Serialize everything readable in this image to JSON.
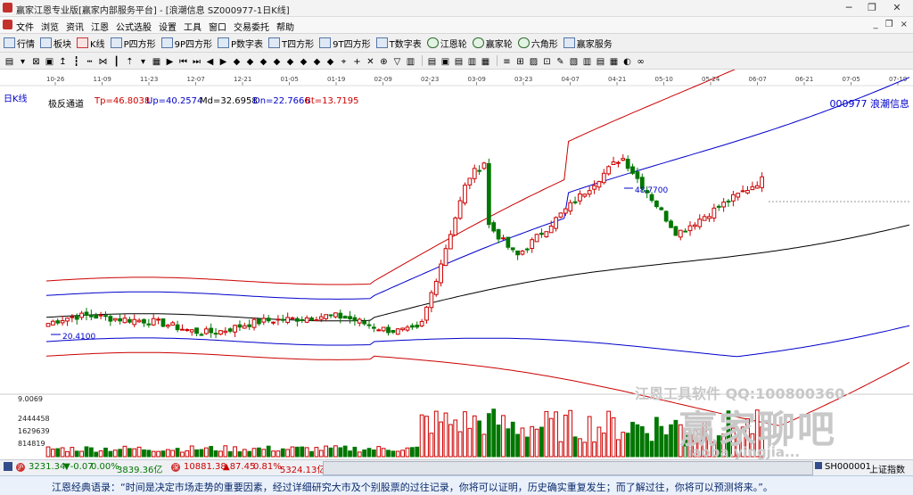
{
  "window": {
    "title": "赢家江恩专业版[赢家内部服务平台] - [浪潮信息 SZ000977-1日K线]",
    "minimize": "─",
    "maximize": "❐",
    "close": "✕"
  },
  "menu": {
    "items": [
      "文件",
      "浏览",
      "资讯",
      "江恩",
      "公式选股",
      "设置",
      "工具",
      "窗口",
      "交易委托",
      "帮助"
    ],
    "mdi": [
      "_",
      "❐",
      "×"
    ]
  },
  "toolbar": {
    "items": [
      {
        "label": "行情",
        "icon": "grid-icon"
      },
      {
        "label": "板块",
        "icon": "blocks-icon"
      },
      {
        "label": "K线",
        "icon": "candle-icon"
      },
      {
        "label": "P四方形",
        "icon": "p-square-icon"
      },
      {
        "label": "9P四方形",
        "icon": "9p-square-icon"
      },
      {
        "label": "P数字表",
        "icon": "p-table-icon"
      },
      {
        "label": "T四方形",
        "icon": "t-square-icon"
      },
      {
        "label": "9T四方形",
        "icon": "9t-square-icon"
      },
      {
        "label": "T数字表",
        "icon": "t-table-icon"
      },
      {
        "label": "江恩轮",
        "icon": "gann-wheel-icon"
      },
      {
        "label": "赢家轮",
        "icon": "winner-wheel-icon"
      },
      {
        "label": "六角形",
        "icon": "hexagon-icon"
      },
      {
        "label": "赢家服务",
        "icon": "service-icon"
      }
    ]
  },
  "chart": {
    "period_label": "日K线",
    "indicator": {
      "name": "极反通道",
      "tp": "Tp=46.8038",
      "up": "Up=40.2574",
      "md": "Md=32.6958",
      "dn": "Dn=22.7666",
      "bt": "Bt=13.7195"
    },
    "stock": "000977 浪潮信息",
    "high_label": "48.7700",
    "low_label": "20.4100",
    "dates": [
      "10-26",
      "11-09",
      "11-23",
      "12-07",
      "12-21",
      "01-05",
      "01-19",
      "02-09",
      "02-23",
      "03-09",
      "03-23",
      "04-07",
      "04-21",
      "05-10",
      "05-24",
      "06-07",
      "06-21",
      "07-05",
      "07-19"
    ],
    "volume_labels": [
      "9.0069",
      "2444458",
      "1629639",
      "814819"
    ]
  },
  "chart_data": {
    "type": "candlestick",
    "price_range": [
      10,
      60
    ],
    "volume_range": [
      0,
      3300000
    ],
    "max_price": 48.77,
    "min_price": 20.41
  },
  "status": {
    "sh_index": "3231.34",
    "sh_change": "▼-0.07",
    "sh_pct": "0.00%",
    "sh_amount": "3839.36亿",
    "sz_index": "10881.38",
    "sz_change": "▲87.45",
    "sz_pct": "0.81%",
    "sz_amount": "5324.13亿",
    "right_code": "SH000001",
    "right_name": "上证指数"
  },
  "quote": "江恩经典语录：“时间是决定市场走势的重要因素，经过详细研究大市及个别股票的过往记录，你将可以证明，历史确实重复发生；而了解过往，你将可以预测将来。”。",
  "watermark": {
    "line1": "江恩工具软件 QQ:100800360",
    "brand": "赢家聊吧",
    "domain": "liaoba.yingjia..."
  },
  "colors": {
    "up": "#cc0000",
    "down": "#007700",
    "upper_band": "#cc0000",
    "mid_band": "#0000cc",
    "ma": "#000000"
  }
}
